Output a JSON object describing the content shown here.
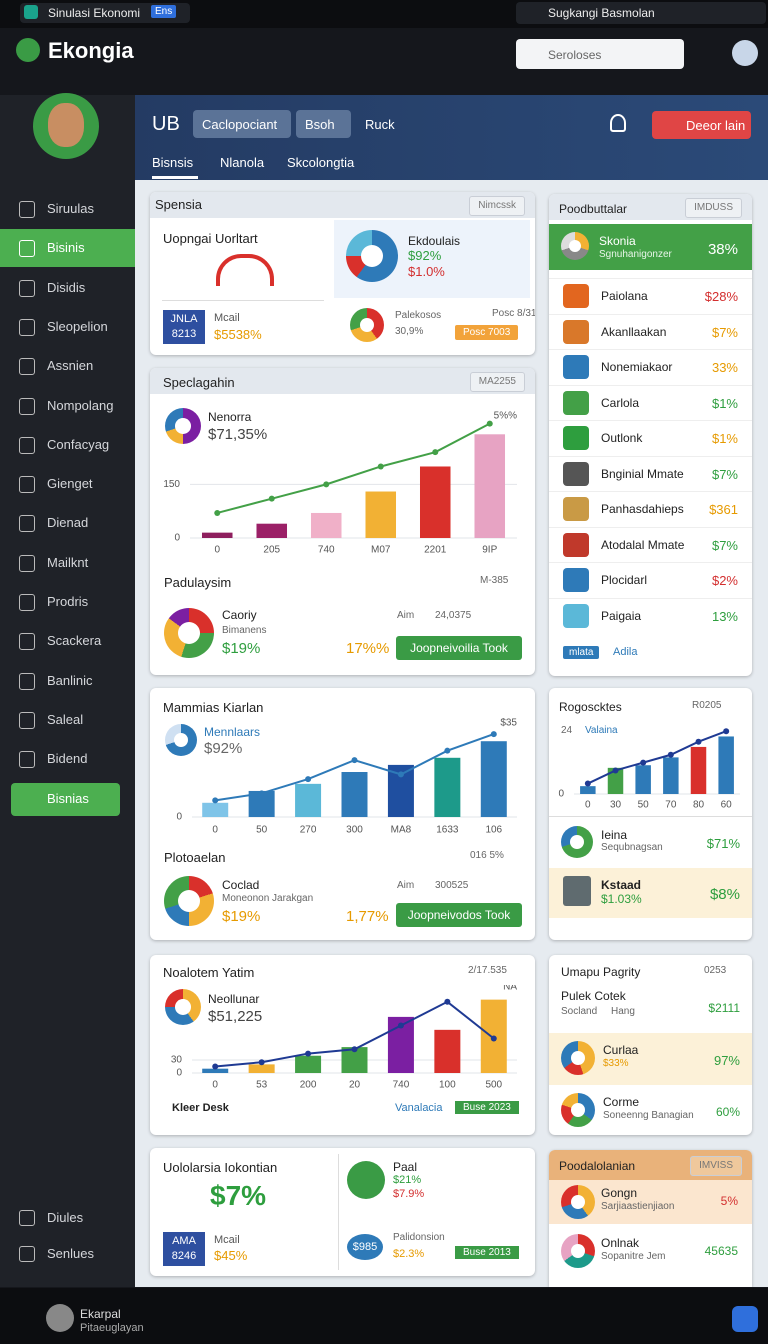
{
  "status_bar": {
    "app": "Sinulasi Ekonomi",
    "badge": "Ens",
    "account": "Sugkangi Basmolan"
  },
  "header": {
    "logo": "Ekongia",
    "search_placeholder": "Seroloses"
  },
  "sidebar": {
    "items": [
      "Siruulas",
      "Bisinis",
      "Disidis",
      "Sleopelion",
      "Assnien",
      "Nompolang",
      "Confacyag",
      "Gienget",
      "Dienad",
      "Mailknt",
      "Prodris",
      "Scackera",
      "Banlinic",
      "Saleal",
      "Bidend"
    ],
    "active": 1,
    "button": "Bisnias",
    "footer": [
      "Diules",
      "Senlues"
    ]
  },
  "top_panel": {
    "title": "UB",
    "tabs": [
      "Caclopociant",
      "Bsoh",
      "Ruck"
    ],
    "button": "Deeor lain",
    "subtabs": [
      "Bisnsis",
      "Nlanola",
      "Skcolongtia"
    ],
    "active_subtab": 0
  },
  "spensia": {
    "title": "Spensia",
    "dropdown": "Nimcssk",
    "main_title": "Uopngai Uorltart",
    "badge": [
      "JNLA",
      "8213"
    ],
    "label": "Mcail",
    "value": "$5538%",
    "donut_title": "Ekdoulais",
    "donut_values": [
      "$92%",
      "$1.0%"
    ],
    "sub_title": "Palekosos",
    "sub_note": "Posc 8/31",
    "sub_value": "30,9%",
    "chip": "Posc 7003"
  },
  "speclagahin": {
    "title": "Speclagahin",
    "dropdown": "MA2255",
    "summary": {
      "title": "Padulaysim",
      "note": "M-385",
      "item": "Caoriy",
      "item_sub": "Bimanens",
      "item_value": "$19%",
      "percent": "17%%",
      "aim": "Aim",
      "aim_value": "24,0375",
      "button": "Joopneivoilia Took"
    }
  },
  "mammias": {
    "title": "Mammias Kiarlan",
    "summary": {
      "title": "Plotoaelan",
      "note": "016 5%",
      "item": "Coclad",
      "item_sub": "Moneonon Jarakgan",
      "item_value": "$19%",
      "percent": "1,77%",
      "aim": "Aim",
      "aim_value": "300525",
      "button": "Joopneivodos Took"
    }
  },
  "noalotem": {
    "title": "Noalotem Yatim",
    "note": "2/17.535",
    "footer": [
      "Kleer Desk",
      "Vanalacia"
    ],
    "chip": "Buse 2023"
  },
  "uololarsia": {
    "title": "Uololarsia Iokontian",
    "big_value": "$7%",
    "badge": [
      "AMA",
      "8246"
    ],
    "label": "Mcail",
    "value": "$45%",
    "right_title": "Paal",
    "right_values": [
      "$21%",
      "$7.9%"
    ],
    "circle": "$985",
    "sub_title": "Palidonsion",
    "sub_value": "$2.3%",
    "chip": "Buse 2013"
  },
  "products": {
    "title": "Poodbuttalar",
    "dropdown": "IMDUSS",
    "highlight": {
      "name": "Skonia",
      "sub": "Sgnuhanigonzer",
      "value": "38%"
    },
    "rows": [
      {
        "name": "Paiolana",
        "value": "$28%",
        "color": "#d32f2f"
      },
      {
        "name": "Akanllaakan",
        "value": "$7%",
        "color": "#e69a00"
      },
      {
        "name": "Nonemiakaor",
        "value": "33%",
        "color": "#e69a00"
      },
      {
        "name": "Carlola",
        "value": "$1%",
        "color": "#2e9e3e"
      },
      {
        "name": "Outlonk",
        "value": "$1%",
        "color": "#e69a00"
      },
      {
        "name": "Bnginial Mmate",
        "value": "$7%",
        "color": "#2e9e3e"
      },
      {
        "name": "Panhasdahieps",
        "value": "$361",
        "color": "#e69a00"
      },
      {
        "name": "Atodalal Mmate",
        "value": "$7%",
        "color": "#2e9e3e"
      },
      {
        "name": "Plocidarl",
        "value": "$2%",
        "color": "#d32f2f"
      },
      {
        "name": "Paigaia",
        "value": "13%",
        "color": "#2e9e3e"
      }
    ],
    "footer": [
      "mlata",
      "Adila"
    ]
  },
  "rogoscktes": {
    "title": "Rogoscktes",
    "note": "R0205",
    "rows": [
      {
        "name": "Ieina",
        "sub": "Sequbnagsan",
        "value": "$71%"
      },
      {
        "name": "Kstaad",
        "sub": "$1.03%",
        "value": "$8%"
      }
    ]
  },
  "umapu": {
    "title": "Umapu Pagrity",
    "note": "0253",
    "sub": "Pulek Cotek",
    "place": "Socland",
    "tag": "Hang",
    "value": "$2111",
    "rows": [
      {
        "name": "Curlaa",
        "sub": "$33%",
        "value": "97%"
      },
      {
        "name": "Corme",
        "sub": "Soneenng Banagian",
        "value": "60%"
      }
    ]
  },
  "poodalolanian": {
    "title": "Poodalolanian",
    "dropdown": "IMVISS",
    "rows": [
      {
        "name": "Gongn",
        "sub": "Sarjiaastienjiaon",
        "value": "5%"
      },
      {
        "name": "Onlnak",
        "sub": "Sopanitre Jem",
        "value": "45635"
      }
    ]
  },
  "bottom_bar": {
    "name": "Ekarpal",
    "sub": "Pitaeuglayan"
  },
  "chart_data": [
    {
      "type": "bar",
      "title": "Nenorra",
      "subtitle": "$71,35%",
      "annotation": "5%%",
      "categories": [
        "0",
        "205",
        "740",
        "M07",
        "2201",
        "9IP"
      ],
      "ylim": [
        0,
        330
      ],
      "yticks": [
        0,
        150
      ],
      "grid": true,
      "series": [
        {
          "type": "bar",
          "colors": [
            "#8e1f5e",
            "#9b2067",
            "#f0b0c8",
            "#f2b134",
            "#d9302b",
            "#e7a3c3"
          ],
          "values": [
            15,
            40,
            70,
            130,
            200,
            290
          ]
        },
        {
          "type": "line",
          "color": "#43a047",
          "values": [
            70,
            110,
            150,
            200,
            240,
            320
          ]
        }
      ]
    },
    {
      "type": "bar",
      "title": "Mennlaars",
      "subtitle": "$92%",
      "annotation": "$35",
      "categories": [
        "0",
        "50",
        "270",
        "300",
        "MA8",
        "1633",
        "106"
      ],
      "ylim": [
        0,
        190
      ],
      "yticks": [
        0
      ],
      "grid": true,
      "series": [
        {
          "type": "bar",
          "colors": [
            "#7fc4e8",
            "#2e7ab8",
            "#5bb8d8",
            "#2e7ab8",
            "#1f4fa0",
            "#1d9a8a",
            "#2e7ab8"
          ],
          "values": [
            30,
            55,
            70,
            95,
            110,
            125,
            160
          ]
        },
        {
          "type": "line",
          "color": "#2e7ab8",
          "values": [
            35,
            50,
            80,
            120,
            90,
            140,
            175
          ]
        }
      ]
    },
    {
      "type": "bar",
      "title": "Neollunar",
      "subtitle": "$51,225",
      "annotation": "NA",
      "categories": [
        "0",
        "53",
        "200",
        "20",
        "740",
        "100",
        "500"
      ],
      "ylim": [
        0,
        190
      ],
      "yticks": [
        0,
        30
      ],
      "grid": true,
      "series": [
        {
          "type": "bar",
          "colors": [
            "#2e7ab8",
            "#f2b134",
            "#43a047",
            "#43a047",
            "#7b1fa2",
            "#d9302b",
            "#f2b134"
          ],
          "values": [
            10,
            20,
            40,
            60,
            130,
            100,
            170
          ]
        },
        {
          "type": "line",
          "color": "#1f3a93",
          "values": [
            15,
            25,
            45,
            55,
            110,
            165,
            80
          ]
        }
      ]
    },
    {
      "type": "bar",
      "title": "Valaina",
      "annotation": "24",
      "categories": [
        "0",
        "30",
        "50",
        "70",
        "80",
        "60"
      ],
      "ylim": [
        0,
        130
      ],
      "yticks": [
        0
      ],
      "grid": true,
      "series": [
        {
          "type": "bar",
          "colors": [
            "#2e7ab8",
            "#43a047",
            "#2e7ab8",
            "#2e7ab8",
            "#d9302b",
            "#2e7ab8"
          ],
          "values": [
            15,
            50,
            55,
            70,
            90,
            110
          ]
        },
        {
          "type": "line",
          "color": "#1f3a93",
          "values": [
            20,
            45,
            60,
            75,
            100,
            120
          ]
        }
      ]
    }
  ]
}
